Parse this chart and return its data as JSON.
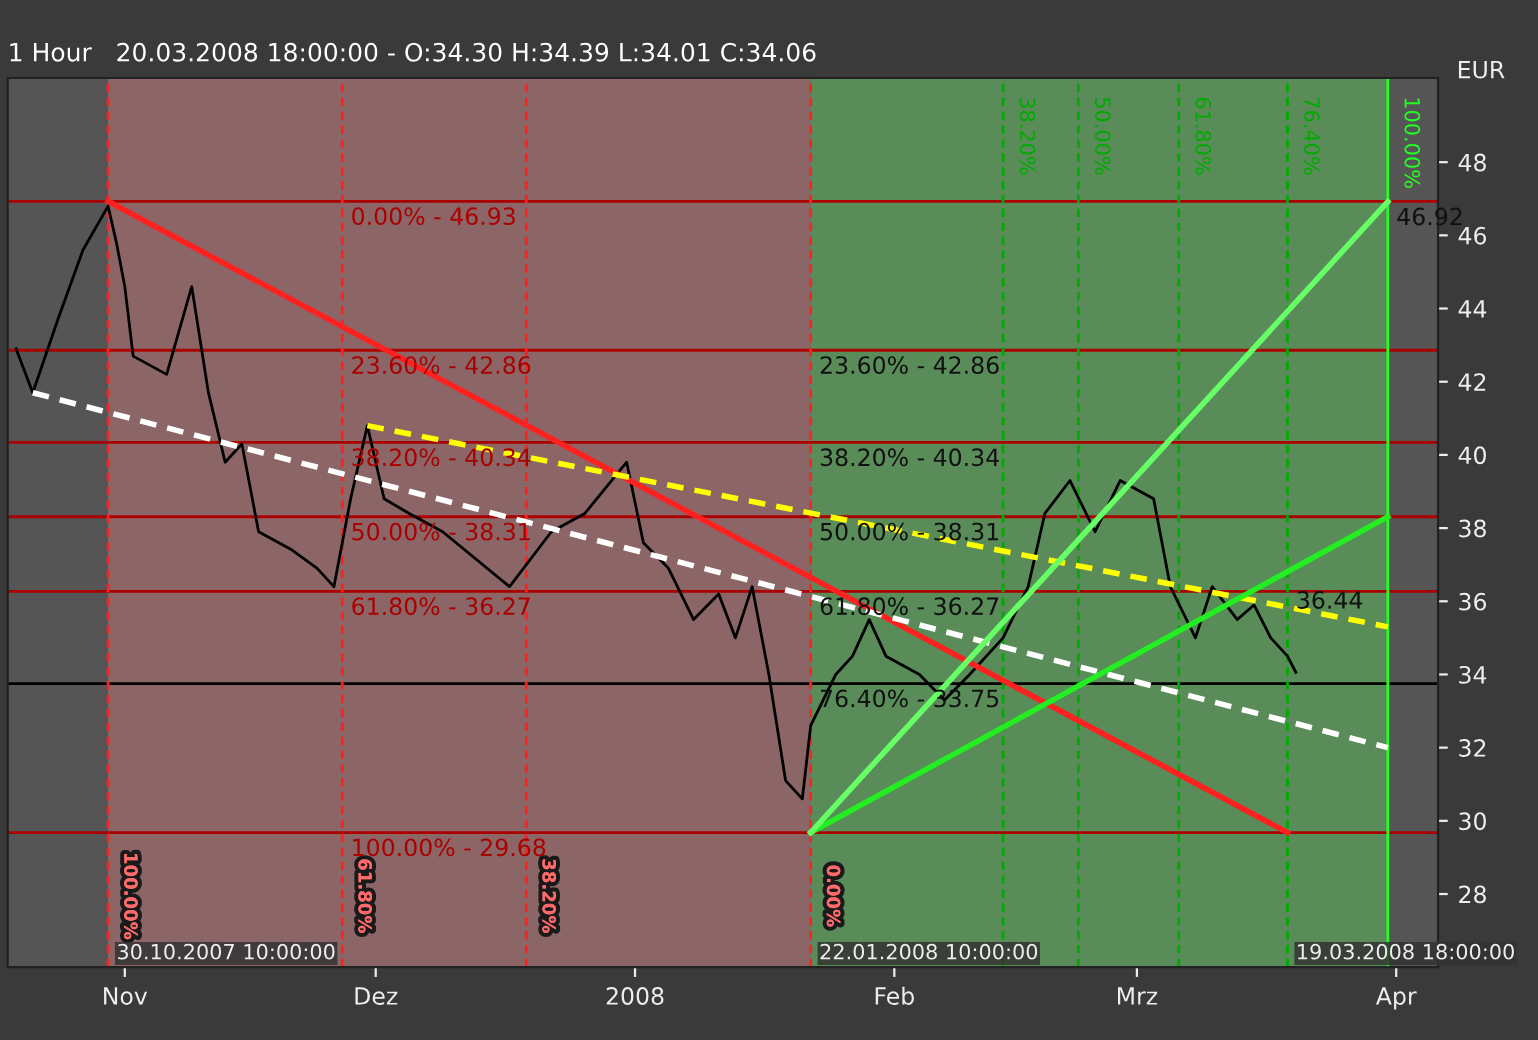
{
  "chart_data": {
    "type": "line",
    "title": "1 Hour   20.03.2008 18:00:00 - O:34.30 H:34.39 L:34.01 C:34.06",
    "ylabel": "EUR",
    "xlim": [
      "2007-10-18",
      "2008-04-06"
    ],
    "ylim": [
      26,
      50.3
    ],
    "xticks": [
      {
        "value": "2007-11-01",
        "label": "Nov"
      },
      {
        "value": "2007-12-01",
        "label": "Dez"
      },
      {
        "value": "2008-01-01",
        "label": "2008"
      },
      {
        "value": "2008-02-01",
        "label": "Feb"
      },
      {
        "value": "2008-03-01",
        "label": "Mrz"
      },
      {
        "value": "2008-04-01",
        "label": "Apr"
      }
    ],
    "yticks": [
      28,
      30,
      32,
      34,
      36,
      38,
      40,
      42,
      44,
      46,
      48
    ],
    "grid": false,
    "legend": false,
    "marker": "none",
    "series": [
      {
        "color": "#000000",
        "line_style": "solid",
        "x": [
          "2007-10-19",
          "2007-10-21",
          "2007-10-24",
          "2007-10-27",
          "2007-10-30",
          "2007-10-31",
          "2007-11-01",
          "2007-11-02",
          "2007-11-06",
          "2007-11-09",
          "2007-11-11",
          "2007-11-13",
          "2007-11-15",
          "2007-11-17",
          "2007-11-21",
          "2007-11-24",
          "2007-11-26",
          "2007-11-28",
          "2007-11-30",
          "2007-12-02",
          "2007-12-05",
          "2007-12-09",
          "2007-12-17",
          "2007-12-22",
          "2007-12-26",
          "2007-12-31",
          "2008-01-02",
          "2008-01-05",
          "2008-01-08",
          "2008-01-11",
          "2008-01-13",
          "2008-01-15",
          "2008-01-17",
          "2008-01-19",
          "2008-01-21",
          "2008-01-22",
          "2008-01-25",
          "2008-01-27",
          "2008-01-29",
          "2008-01-31",
          "2008-02-04",
          "2008-02-07",
          "2008-02-10",
          "2008-02-14",
          "2008-02-17",
          "2008-02-19",
          "2008-02-22",
          "2008-02-25",
          "2008-02-28",
          "2008-03-03",
          "2008-03-05",
          "2008-03-08",
          "2008-03-10",
          "2008-03-13",
          "2008-03-15",
          "2008-03-17",
          "2008-03-19",
          "2008-03-20"
        ],
        "values": [
          42.9,
          41.7,
          43.7,
          45.6,
          46.8,
          45.8,
          44.6,
          42.7,
          42.2,
          44.6,
          41.7,
          39.8,
          40.3,
          37.9,
          37.4,
          36.9,
          36.4,
          38.8,
          40.8,
          38.8,
          38.4,
          37.9,
          36.4,
          37.9,
          38.4,
          39.8,
          37.6,
          36.9,
          35.5,
          36.2,
          35.0,
          36.4,
          34.0,
          31.1,
          30.6,
          32.6,
          34.0,
          34.5,
          35.5,
          34.5,
          34.0,
          33.3,
          34.0,
          35.0,
          36.4,
          38.4,
          39.3,
          37.9,
          39.3,
          38.8,
          36.4,
          35.0,
          36.4,
          35.5,
          35.9,
          35.0,
          34.5,
          34.06
        ]
      },
      {
        "color": "#ff2020",
        "line_style": "solid",
        "x": [
          "2007-10-30",
          "2008-03-19"
        ],
        "values": [
          46.93,
          29.68
        ]
      },
      {
        "color": "#ffffff",
        "line_style": "dashed",
        "x": [
          "2007-10-21",
          "2008-03-31"
        ],
        "values": [
          41.7,
          32.0
        ]
      },
      {
        "color": "#ffff00",
        "line_style": "dashed",
        "x": [
          "2007-11-30",
          "2008-03-31"
        ],
        "values": [
          40.8,
          35.3
        ]
      },
      {
        "color": "#22ee22",
        "line_style": "solid",
        "x": [
          "2008-01-22",
          "2008-03-31"
        ],
        "values": [
          29.68,
          38.31
        ]
      },
      {
        "color": "#66ff66",
        "line_style": "solid",
        "x": [
          "2008-01-22",
          "2008-03-31"
        ],
        "values": [
          29.68,
          46.92
        ]
      }
    ],
    "ref_lines": [
      {
        "axis": "y",
        "value": 46.93,
        "color": "#aa0000"
      },
      {
        "axis": "y",
        "value": 42.86,
        "color": "#aa0000"
      },
      {
        "axis": "y",
        "value": 40.34,
        "color": "#aa0000"
      },
      {
        "axis": "y",
        "value": 38.31,
        "color": "#aa0000"
      },
      {
        "axis": "y",
        "value": 36.27,
        "color": "#aa0000"
      },
      {
        "axis": "y",
        "value": 33.75,
        "color": "#000000"
      },
      {
        "axis": "y",
        "value": 29.68,
        "color": "#aa0000"
      },
      {
        "axis": "x",
        "value": "2007-10-30",
        "label": "100.00%",
        "color": "#ff2020",
        "line_style": "dashed"
      },
      {
        "axis": "x",
        "value": "2007-11-27",
        "label": "61.80%",
        "color": "#ff2020",
        "line_style": "dashed"
      },
      {
        "axis": "x",
        "value": "2007-12-19",
        "label": "38.20%",
        "color": "#ff2020",
        "line_style": "dashed"
      },
      {
        "axis": "x",
        "value": "2008-01-22",
        "label": "0.00%",
        "color": "#ff2020",
        "line_style": "dashed"
      },
      {
        "axis": "x",
        "value": "2008-02-14",
        "label": "38.20%",
        "color": "#00aa00",
        "line_style": "dashed"
      },
      {
        "axis": "x",
        "value": "2008-02-23",
        "label": "50.00%",
        "color": "#00aa00",
        "line_style": "dashed"
      },
      {
        "axis": "x",
        "value": "2008-03-06",
        "label": "61.80%",
        "color": "#00aa00",
        "line_style": "dashed"
      },
      {
        "axis": "x",
        "value": "2008-03-19",
        "label": "76.40%",
        "color": "#00aa00",
        "line_style": "dashed"
      },
      {
        "axis": "x",
        "value": "2008-03-31",
        "label": "100.00%",
        "color": "#22ff22",
        "line_style": "solid"
      }
    ],
    "bands": [
      {
        "axis": "x",
        "from": "2007-10-30",
        "to": "2008-01-22",
        "color": "#9a6a6a"
      },
      {
        "axis": "x",
        "from": "2008-01-22",
        "to": "2008-03-31",
        "color": "#5a9a5a"
      }
    ],
    "annotations": [
      {
        "text": "0.00% - 46.93",
        "x": "2007-11-27",
        "y": 46.93
      },
      {
        "text": "23.60% - 42.86",
        "x": "2007-11-27",
        "y": 42.86
      },
      {
        "text": "38.20% - 40.34",
        "x": "2007-11-27",
        "y": 40.34
      },
      {
        "text": "50.00% - 38.31",
        "x": "2007-11-27",
        "y": 38.31
      },
      {
        "text": "61.80% - 36.27",
        "x": "2007-11-27",
        "y": 36.27
      },
      {
        "text": "76.40% - 33.75",
        "x": "2008-01-22",
        "y": 33.75
      },
      {
        "text": "100.00% - 29.68",
        "x": "2007-11-27",
        "y": 29.68
      },
      {
        "text": "23.60% - 42.86",
        "x": "2008-01-22",
        "y": 42.86
      },
      {
        "text": "38.20% - 40.34",
        "x": "2008-01-22",
        "y": 40.34
      },
      {
        "text": "50.00% - 38.31",
        "x": "2008-01-22",
        "y": 38.31
      },
      {
        "text": "61.80% - 36.27",
        "x": "2008-01-22",
        "y": 36.27
      },
      {
        "text": "46.92",
        "x": "2008-03-31",
        "y": 46.92
      },
      {
        "text": "36.44",
        "x": "2008-03-19",
        "y": 36.44
      },
      {
        "text": "30.10.2007 10:00:00",
        "x": "2007-10-30",
        "y": 26.8
      },
      {
        "text": "22.01.2008 10:00:00",
        "x": "2008-01-22",
        "y": 26.8
      },
      {
        "text": "19.03.2008 18:00:00",
        "x": "2008-03-19",
        "y": 26.8
      }
    ]
  }
}
